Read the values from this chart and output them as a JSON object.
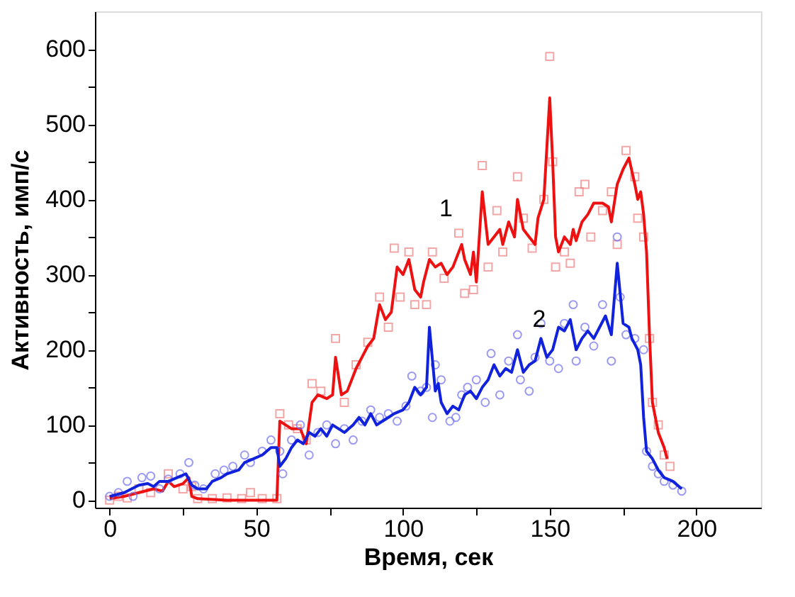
{
  "chart_data": {
    "type": "line",
    "xlabel": "Время, сек",
    "ylabel": "Активность, имп/с",
    "xlim": [
      -5,
      222
    ],
    "ylim": [
      -10,
      650
    ],
    "xticks": [
      0,
      {
        "value": 25,
        "label": null
      },
      50,
      {
        "value": 75,
        "label": null
      },
      100,
      {
        "value": 125,
        "label": null
      },
      150,
      {
        "value": 175,
        "label": null
      },
      200
    ],
    "yticks": [
      0,
      {
        "value": 50,
        "label": null
      },
      100,
      {
        "value": 150,
        "label": null
      },
      200,
      {
        "value": 250,
        "label": null
      },
      300,
      {
        "value": 350,
        "label": null
      },
      400,
      {
        "value": 450,
        "label": null
      },
      500,
      {
        "value": 550,
        "label": null
      },
      600
    ],
    "grid": false,
    "annotations": [
      "1",
      "2"
    ],
    "series": [
      {
        "type": "scatter",
        "marker": "square",
        "color": "#f08080",
        "x": [
          0,
          3,
          6,
          10,
          14,
          20,
          25,
          28,
          30,
          35,
          40,
          45,
          48,
          52,
          57,
          58,
          61,
          64,
          67,
          69,
          72,
          77,
          80,
          84,
          88,
          92,
          95,
          97,
          99,
          102,
          104,
          108,
          110,
          114,
          119,
          121,
          124,
          127,
          129,
          132,
          134,
          139,
          141,
          144,
          148,
          150,
          151,
          152,
          155,
          157,
          160,
          162,
          164,
          168,
          171,
          173,
          176,
          179,
          180,
          182,
          184,
          185,
          187,
          189,
          191
        ],
        "values": [
          0,
          5,
          3,
          15,
          10,
          35,
          15,
          18,
          2,
          2,
          3,
          2,
          10,
          2,
          2,
          115,
          100,
          95,
          80,
          155,
          145,
          215,
          130,
          180,
          210,
          270,
          230,
          335,
          270,
          330,
          260,
          260,
          330,
          295,
          355,
          275,
          280,
          445,
          310,
          385,
          330,
          430,
          375,
          335,
          400,
          590,
          450,
          310,
          330,
          315,
          410,
          420,
          350,
          385,
          410,
          340,
          465,
          430,
          375,
          350,
          215,
          130,
          100,
          60,
          45
        ]
      },
      {
        "marker": "none",
        "color": "#ee1111",
        "x": [
          0,
          5,
          10,
          15,
          18,
          20,
          22,
          25,
          27,
          28,
          30,
          40,
          50,
          57,
          58,
          60,
          62,
          65,
          67,
          69,
          71,
          74,
          76,
          77,
          79,
          81,
          84,
          86,
          88,
          90,
          92,
          94,
          96,
          98,
          100,
          102,
          104,
          106,
          107,
          109,
          111,
          113,
          115,
          117,
          119,
          120,
          121,
          123,
          124,
          125,
          127,
          129,
          131,
          133,
          134,
          136,
          138,
          139,
          141,
          143,
          145,
          146,
          148,
          150,
          151,
          152,
          153,
          155,
          157,
          158,
          159,
          161,
          163,
          165,
          168,
          170,
          171,
          173,
          175,
          177,
          179,
          180,
          181,
          182,
          183,
          184,
          185,
          187,
          189,
          190
        ],
        "values": [
          2,
          5,
          10,
          15,
          12,
          25,
          18,
          22,
          30,
          5,
          2,
          0,
          0,
          0,
          105,
          100,
          95,
          95,
          75,
          130,
          140,
          135,
          140,
          190,
          140,
          145,
          175,
          190,
          205,
          215,
          260,
          240,
          250,
          310,
          300,
          320,
          280,
          270,
          290,
          320,
          310,
          315,
          300,
          310,
          330,
          340,
          320,
          300,
          330,
          290,
          410,
          340,
          350,
          360,
          340,
          370,
          350,
          400,
          360,
          350,
          340,
          375,
          400,
          535,
          450,
          350,
          330,
          350,
          340,
          360,
          345,
          370,
          380,
          395,
          395,
          390,
          370,
          420,
          440,
          455,
          420,
          400,
          410,
          380,
          330,
          220,
          130,
          90,
          70,
          55
        ]
      },
      {
        "type": "scatter",
        "marker": "circle",
        "color": "#7070f0",
        "x": [
          0,
          3,
          6,
          8,
          11,
          14,
          17,
          20,
          24,
          27,
          29,
          32,
          36,
          39,
          42,
          46,
          48,
          52,
          55,
          58,
          59,
          62,
          65,
          68,
          71,
          74,
          77,
          80,
          83,
          86,
          89,
          92,
          95,
          98,
          101,
          103,
          106,
          108,
          110,
          111,
          113,
          116,
          118,
          120,
          122,
          125,
          128,
          130,
          133,
          136,
          139,
          140,
          143,
          145,
          147,
          150,
          153,
          155,
          158,
          159,
          162,
          165,
          168,
          171,
          173,
          174,
          176,
          179,
          182,
          183,
          185,
          187,
          189,
          192,
          195
        ],
        "values": [
          5,
          10,
          25,
          5,
          30,
          32,
          15,
          28,
          35,
          50,
          20,
          15,
          35,
          40,
          45,
          60,
          50,
          65,
          80,
          65,
          35,
          80,
          100,
          60,
          90,
          100,
          75,
          95,
          80,
          105,
          120,
          110,
          115,
          105,
          125,
          165,
          145,
          150,
          110,
          180,
          160,
          105,
          110,
          140,
          150,
          160,
          130,
          195,
          140,
          185,
          220,
          160,
          145,
          190,
          235,
          185,
          175,
          235,
          260,
          185,
          230,
          205,
          260,
          185,
          350,
          270,
          220,
          215,
          200,
          65,
          45,
          35,
          25,
          20,
          12
        ]
      },
      {
        "marker": "none",
        "color": "#1122dd",
        "x": [
          0,
          5,
          10,
          13,
          15,
          17,
          20,
          23,
          26,
          28,
          30,
          33,
          35,
          38,
          40,
          44,
          46,
          49,
          52,
          55,
          57,
          58,
          60,
          62,
          64,
          66,
          68,
          70,
          72,
          74,
          76,
          78,
          80,
          83,
          85,
          87,
          89,
          91,
          93,
          95,
          97,
          100,
          102,
          104,
          106,
          108,
          109,
          111,
          112,
          113,
          115,
          117,
          119,
          121,
          123,
          125,
          127,
          129,
          131,
          133,
          135,
          137,
          139,
          141,
          143,
          145,
          147,
          149,
          151,
          153,
          155,
          157,
          159,
          161,
          163,
          165,
          167,
          169,
          171,
          173,
          175,
          177,
          178,
          180,
          181,
          182,
          183,
          185,
          187,
          189,
          192,
          195
        ],
        "values": [
          5,
          10,
          20,
          22,
          18,
          25,
          25,
          30,
          35,
          20,
          15,
          15,
          25,
          30,
          35,
          40,
          50,
          55,
          60,
          70,
          70,
          45,
          55,
          70,
          80,
          75,
          90,
          85,
          95,
          85,
          100,
          95,
          90,
          100,
          110,
          100,
          115,
          100,
          105,
          110,
          115,
          120,
          130,
          150,
          140,
          150,
          230,
          145,
          155,
          130,
          115,
          125,
          120,
          140,
          145,
          135,
          150,
          160,
          180,
          165,
          175,
          170,
          200,
          170,
          180,
          185,
          215,
          190,
          200,
          230,
          225,
          240,
          200,
          215,
          225,
          215,
          230,
          245,
          220,
          315,
          235,
          230,
          215,
          200,
          180,
          110,
          65,
          55,
          40,
          30,
          25,
          15
        ]
      }
    ]
  }
}
